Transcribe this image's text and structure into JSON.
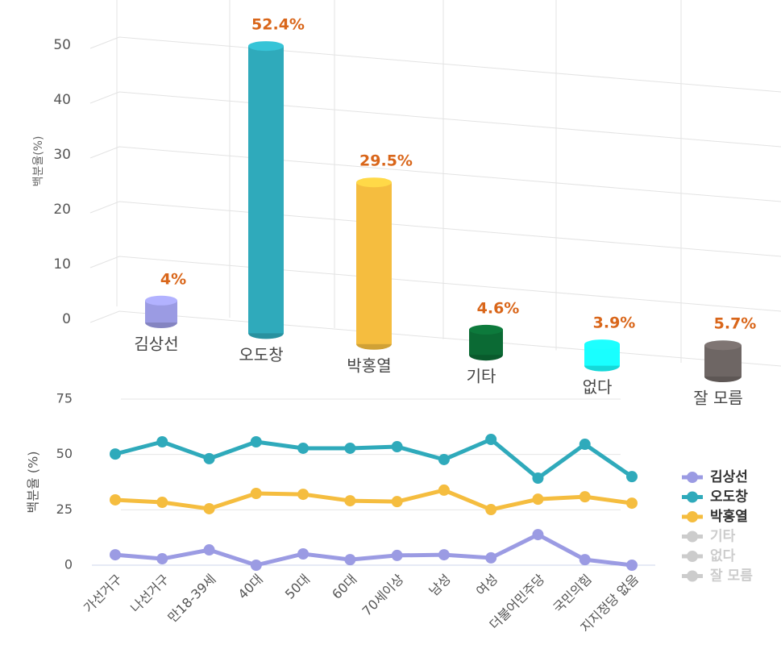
{
  "chart_data": [
    {
      "type": "bar",
      "ylabel": "백분율(%)",
      "categories": [
        "김상선",
        "오도창",
        "박홍열",
        "기타",
        "없다",
        "잘 모름"
      ],
      "values": [
        4,
        52.4,
        29.5,
        4.6,
        3.9,
        5.7
      ],
      "value_labels": [
        "4%",
        "52.4%",
        "29.5%",
        "4.6%",
        "3.9%",
        "5.7%"
      ],
      "colors": [
        "#9b9be3",
        "#2faabb",
        "#f5bd3f",
        "#0b6a34",
        "#19ffff",
        "#6e6664"
      ],
      "ylim": [
        0,
        55
      ],
      "yticks": [
        0,
        10,
        20,
        30,
        40,
        50
      ],
      "grid": true
    },
    {
      "type": "line",
      "ylabel": "백분율 (%)",
      "categories": [
        "가선거구",
        "나선거구",
        "만18-39세",
        "40대",
        "50대",
        "60대",
        "70세이상",
        "남성",
        "여성",
        "더불어민주당",
        "국민의힘",
        "지지정당 없음"
      ],
      "series": [
        {
          "name": "김상선",
          "color": "#9b9be3",
          "visible": true,
          "values": [
            4.7,
            2.9,
            6.9,
            0,
            5.1,
            2.5,
            4.4,
            4.7,
            3.3,
            13.8,
            2.5,
            0
          ]
        },
        {
          "name": "오도창",
          "color": "#2faabb",
          "visible": true,
          "values": [
            50.2,
            55.7,
            48.1,
            55.7,
            52.8,
            52.8,
            53.5,
            47.7,
            56.8,
            39.3,
            54.6,
            40
          ]
        },
        {
          "name": "박홍열",
          "color": "#f5bd3f",
          "visible": true,
          "values": [
            29.5,
            28.4,
            25.5,
            32.4,
            32.0,
            29.1,
            28.7,
            33.9,
            25.1,
            29.8,
            30.9,
            28.0
          ]
        },
        {
          "name": "기타",
          "color": "#0b6a34",
          "visible": false,
          "values": [
            null,
            null,
            null,
            null,
            null,
            null,
            null,
            null,
            null,
            null,
            null,
            null
          ]
        },
        {
          "name": "없다",
          "color": "#19ffff",
          "visible": false,
          "values": [
            null,
            null,
            null,
            null,
            null,
            null,
            null,
            null,
            null,
            null,
            null,
            null
          ]
        },
        {
          "name": "잘 모름",
          "color": "#6e6664",
          "visible": false,
          "values": [
            null,
            null,
            null,
            null,
            null,
            null,
            null,
            null,
            null,
            null,
            null,
            null
          ]
        }
      ],
      "ylim": [
        0,
        75
      ],
      "yticks": [
        0,
        25,
        50,
        75
      ],
      "grid": true,
      "legend": "right"
    }
  ]
}
